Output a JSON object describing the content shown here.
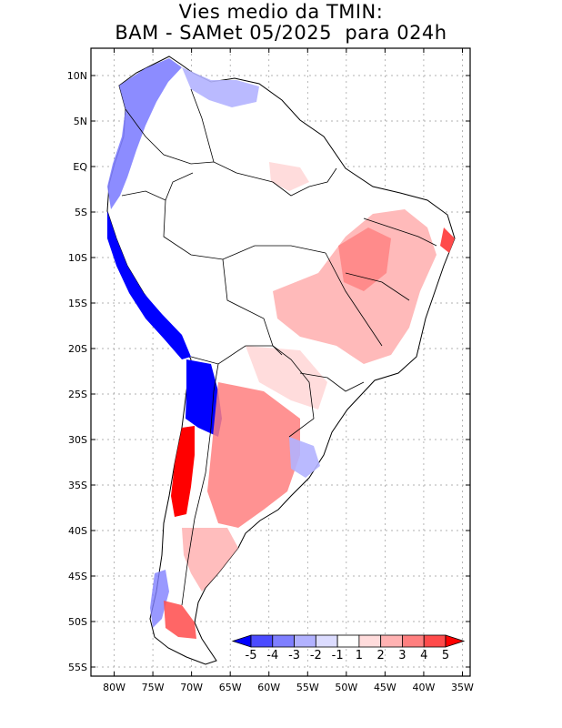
{
  "title": {
    "line1": "Vies medio da TMIN:",
    "line2": "BAM - SAMet 05/2025  para 024h"
  },
  "axes": {
    "lat_labels": [
      "10N",
      "5N",
      "EQ",
      "5S",
      "10S",
      "15S",
      "20S",
      "25S",
      "30S",
      "35S",
      "40S",
      "45S",
      "50S",
      "55S"
    ],
    "lon_labels": [
      "80W",
      "75W",
      "70W",
      "65W",
      "60W",
      "55W",
      "50W",
      "45W",
      "40W",
      "35W"
    ]
  },
  "map_extent": {
    "lon_min": -83,
    "lon_max": -34,
    "lat_min": -56,
    "lat_max": 13
  },
  "colorbar": {
    "labels": [
      "-5",
      "-4",
      "-3",
      "-2",
      "-1",
      "1",
      "2",
      "3",
      "4",
      "5"
    ],
    "colors": [
      "#0000ff",
      "#4b4bff",
      "#7f7fff",
      "#b2b2ff",
      "#dcdcff",
      "#ffffff",
      "#ffdcdc",
      "#ffb2b2",
      "#ff7f7f",
      "#ff4b4b",
      "#ff0000"
    ]
  }
}
